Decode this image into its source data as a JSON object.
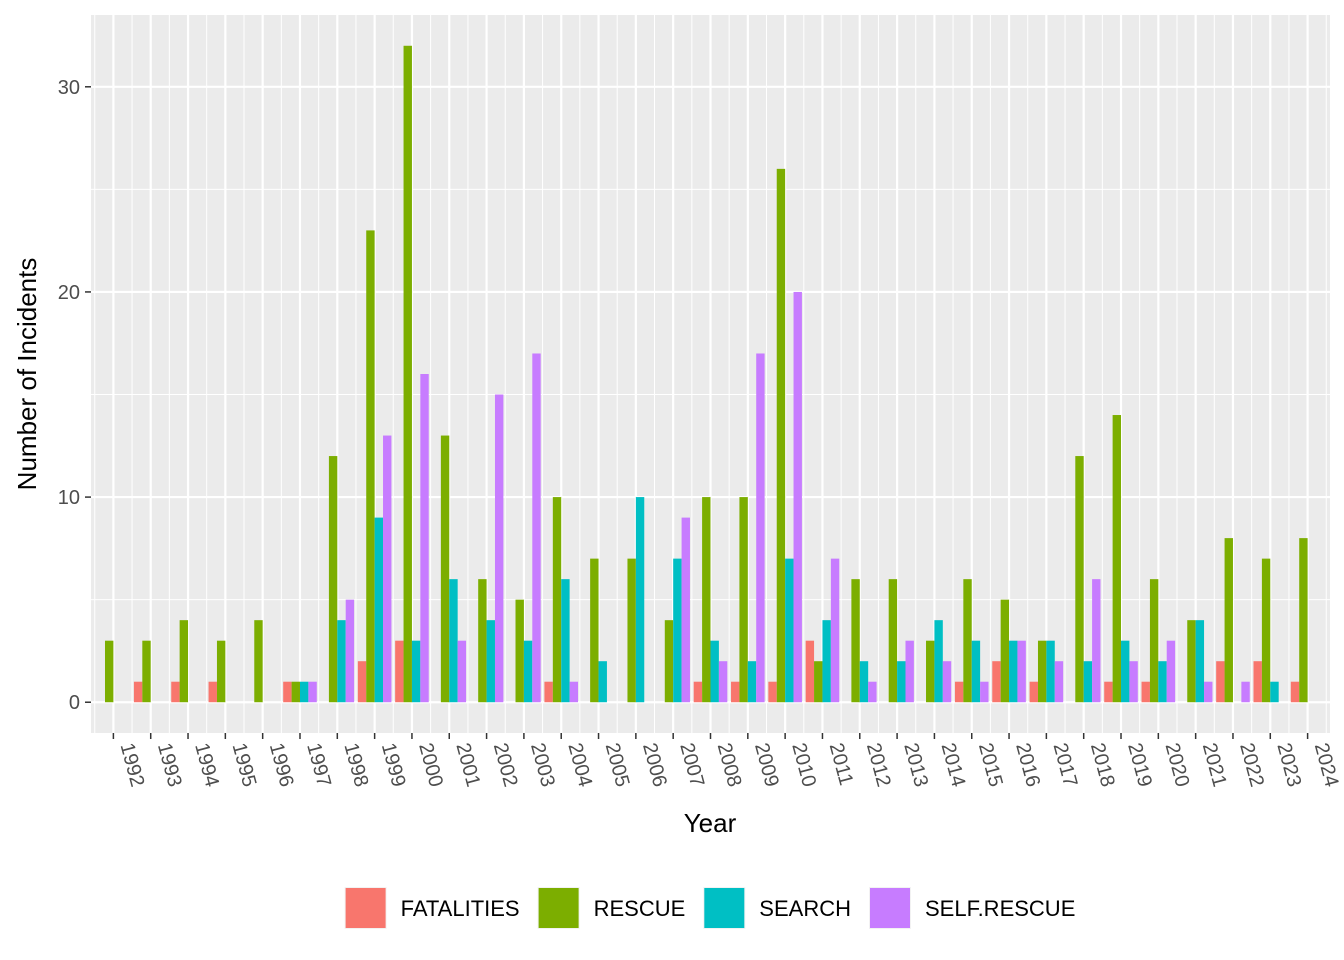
{
  "chart_data": {
    "type": "bar",
    "xlabel": "Year",
    "ylabel": "Number of Incidents",
    "ylim": [
      -1.5,
      33.5
    ],
    "yticks": [
      0,
      10,
      20,
      30
    ],
    "grid": true,
    "legend_position": "bottom",
    "categories": [
      "1992",
      "1993",
      "1994",
      "1995",
      "1996",
      "1997",
      "1998",
      "1999",
      "2000",
      "2001",
      "2002",
      "2003",
      "2004",
      "2005",
      "2006",
      "2007",
      "2008",
      "2009",
      "2010",
      "2011",
      "2012",
      "2013",
      "2014",
      "2015",
      "2016",
      "2017",
      "2018",
      "2019",
      "2020",
      "2021",
      "2022",
      "2023",
      "2024"
    ],
    "series": [
      {
        "name": "FATALITIES",
        "color": "#F8766D",
        "values": [
          null,
          1,
          1,
          1,
          null,
          1,
          null,
          2,
          3,
          null,
          null,
          null,
          1,
          null,
          null,
          null,
          1,
          1,
          1,
          3,
          null,
          null,
          null,
          1,
          2,
          1,
          null,
          1,
          1,
          null,
          2,
          2,
          1
        ]
      },
      {
        "name": "RESCUE",
        "color": "#7CAE00",
        "values": [
          3,
          3,
          4,
          3,
          4,
          1,
          12,
          23,
          32,
          13,
          6,
          5,
          10,
          7,
          7,
          4,
          10,
          10,
          26,
          2,
          6,
          6,
          3,
          6,
          5,
          3,
          12,
          14,
          6,
          4,
          8,
          7,
          8
        ]
      },
      {
        "name": "SEARCH",
        "color": "#00BFC4",
        "values": [
          null,
          null,
          null,
          null,
          null,
          1,
          4,
          9,
          3,
          6,
          4,
          3,
          6,
          2,
          10,
          7,
          3,
          2,
          7,
          4,
          2,
          2,
          4,
          3,
          3,
          3,
          2,
          3,
          2,
          4,
          null,
          1,
          null
        ]
      },
      {
        "name": "SELF.RESCUE",
        "color": "#C77CFF",
        "values": [
          null,
          null,
          null,
          null,
          null,
          1,
          5,
          13,
          16,
          3,
          15,
          17,
          1,
          null,
          null,
          9,
          2,
          17,
          20,
          7,
          1,
          3,
          2,
          1,
          3,
          2,
          6,
          2,
          3,
          1,
          1,
          null,
          null
        ]
      }
    ]
  }
}
